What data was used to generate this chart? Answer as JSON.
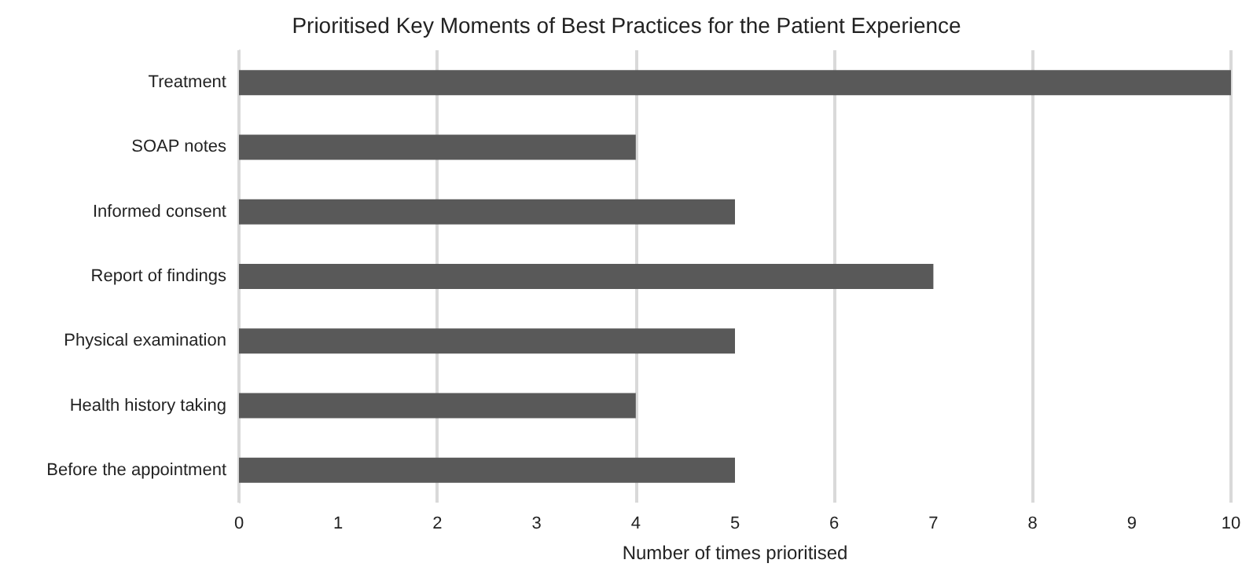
{
  "chart_data": {
    "type": "bar",
    "orientation": "horizontal",
    "title": "Prioritised Key Moments of Best Practices for the Patient Experience",
    "xlabel": "Number of times prioritised",
    "categories": [
      "Treatment",
      "SOAP notes",
      "Informed consent",
      "Report of findings",
      "Physical examination",
      "Health history taking",
      "Before the appointment"
    ],
    "values": [
      10,
      4,
      5,
      7,
      5,
      4,
      5
    ],
    "color": "#595959",
    "xlim": [
      0,
      10
    ],
    "xticks": [
      0,
      1,
      2,
      3,
      4,
      5,
      6,
      7,
      8,
      9,
      10
    ],
    "grid": "x"
  }
}
